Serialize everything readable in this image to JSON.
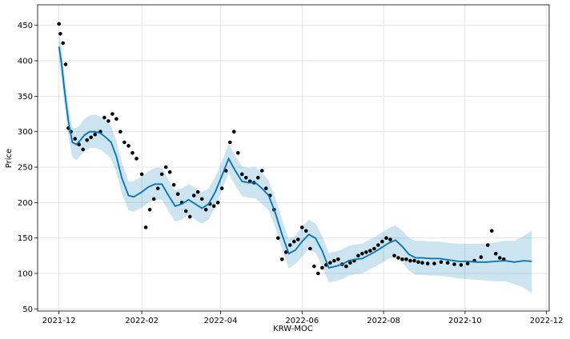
{
  "chart_data": {
    "type": "scatter",
    "xlabel": "KRW-MOC",
    "ylabel": "Price",
    "x_ticks": [
      "2021-12",
      "2022-02",
      "2022-04",
      "2022-06",
      "2022-08",
      "2022-10",
      "2022-12"
    ],
    "y_ticks": [
      50,
      100,
      150,
      200,
      250,
      300,
      350,
      400,
      450
    ],
    "xlim": [
      "2021-11-15",
      "2022-12-03"
    ],
    "ylim": [
      47,
      479
    ],
    "grid": true,
    "colors": {
      "observed": "#000000",
      "forecast": "#0072B2",
      "uncertainty": "#0072B2",
      "grid": "#dddddd"
    },
    "series": [
      {
        "role": "forecast",
        "x": [
          "2021-12-01",
          "2021-12-03",
          "2021-12-05",
          "2021-12-08",
          "2021-12-11",
          "2021-12-14",
          "2021-12-17",
          "2021-12-20",
          "2021-12-24",
          "2021-12-28",
          "2022-01-01",
          "2022-01-05",
          "2022-01-09",
          "2022-01-13",
          "2022-01-17",
          "2022-01-22",
          "2022-01-26",
          "2022-02-01",
          "2022-02-06",
          "2022-02-11",
          "2022-02-16",
          "2022-02-21",
          "2022-02-26",
          "2022-03-03",
          "2022-03-08",
          "2022-03-13",
          "2022-03-18",
          "2022-03-23",
          "2022-03-28",
          "2022-04-02",
          "2022-04-07",
          "2022-04-12",
          "2022-04-17",
          "2022-04-22",
          "2022-04-27",
          "2022-05-02",
          "2022-05-07",
          "2022-05-12",
          "2022-05-17",
          "2022-05-22",
          "2022-05-27",
          "2022-06-01",
          "2022-06-06",
          "2022-06-11",
          "2022-06-16",
          "2022-06-21",
          "2022-06-26",
          "2022-07-01",
          "2022-07-06",
          "2022-07-11",
          "2022-07-16",
          "2022-07-21",
          "2022-07-26",
          "2022-07-31",
          "2022-08-05",
          "2022-08-10",
          "2022-08-15",
          "2022-08-20",
          "2022-08-25",
          "2022-08-30",
          "2022-09-05",
          "2022-09-12",
          "2022-09-19",
          "2022-09-26",
          "2022-10-03",
          "2022-10-10",
          "2022-10-17",
          "2022-10-24",
          "2022-10-31",
          "2022-11-07",
          "2022-11-14",
          "2022-11-20"
        ],
        "y": [
          420,
          395,
          360,
          315,
          285,
          282,
          288,
          295,
          300,
          300,
          298,
          292,
          285,
          265,
          235,
          210,
          208,
          215,
          222,
          226,
          226,
          210,
          195,
          198,
          204,
          198,
          192,
          198,
          215,
          238,
          262,
          245,
          230,
          228,
          228,
          220,
          210,
          185,
          155,
          128,
          133,
          145,
          155,
          150,
          132,
          108,
          110,
          113,
          118,
          120,
          121,
          126,
          131,
          137,
          143,
          147,
          138,
          127,
          122,
          122,
          121,
          121,
          119,
          117,
          117,
          116,
          116,
          117,
          118,
          116,
          118,
          117
        ]
      },
      {
        "role": "uncertainty",
        "upper": [
          440,
          416,
          383,
          337,
          306,
          305,
          310,
          318,
          323,
          324,
          321,
          316,
          308,
          287,
          257,
          230,
          230,
          237,
          244,
          249,
          249,
          232,
          217,
          220,
          226,
          221,
          214,
          220,
          236,
          258,
          283,
          266,
          251,
          249,
          250,
          242,
          231,
          206,
          176,
          149,
          153,
          166,
          176,
          171,
          153,
          129,
          131,
          134,
          139,
          141,
          142,
          147,
          152,
          158,
          164,
          168,
          160,
          150,
          146,
          146,
          145,
          145,
          143,
          142,
          142,
          142,
          142,
          144,
          146,
          146,
          153,
          160
        ],
        "lower": [
          399,
          374,
          339,
          294,
          264,
          260,
          266,
          272,
          277,
          277,
          275,
          269,
          262,
          243,
          213,
          189,
          187,
          193,
          200,
          204,
          204,
          188,
          173,
          176,
          182,
          176,
          170,
          176,
          194,
          218,
          241,
          224,
          209,
          207,
          206,
          198,
          189,
          164,
          134,
          107,
          113,
          124,
          134,
          129,
          111,
          87,
          89,
          92,
          97,
          99,
          100,
          105,
          110,
          115,
          121,
          125,
          116,
          104,
          98,
          98,
          97,
          97,
          95,
          93,
          92,
          91,
          90,
          89,
          89,
          85,
          80,
          72
        ]
      },
      {
        "role": "observed",
        "x": [
          "2021-12-01",
          "2021-12-02",
          "2021-12-04",
          "2021-12-06",
          "2021-12-08",
          "2021-12-10",
          "2021-12-13",
          "2021-12-16",
          "2021-12-19",
          "2021-12-22",
          "2021-12-25",
          "2021-12-28",
          "2022-01-01",
          "2022-01-04",
          "2022-01-07",
          "2022-01-10",
          "2022-01-13",
          "2022-01-16",
          "2022-01-19",
          "2022-01-22",
          "2022-01-25",
          "2022-01-28",
          "2022-02-01",
          "2022-02-04",
          "2022-02-07",
          "2022-02-10",
          "2022-02-13",
          "2022-02-16",
          "2022-02-19",
          "2022-02-22",
          "2022-02-25",
          "2022-02-28",
          "2022-03-03",
          "2022-03-06",
          "2022-03-09",
          "2022-03-12",
          "2022-03-15",
          "2022-03-18",
          "2022-03-21",
          "2022-03-24",
          "2022-03-27",
          "2022-03-30",
          "2022-04-02",
          "2022-04-05",
          "2022-04-08",
          "2022-04-11",
          "2022-04-14",
          "2022-04-17",
          "2022-04-20",
          "2022-04-23",
          "2022-04-26",
          "2022-04-29",
          "2022-05-02",
          "2022-05-05",
          "2022-05-08",
          "2022-05-11",
          "2022-05-14",
          "2022-05-17",
          "2022-05-20",
          "2022-05-23",
          "2022-05-26",
          "2022-05-29",
          "2022-06-01",
          "2022-06-04",
          "2022-06-07",
          "2022-06-10",
          "2022-06-13",
          "2022-06-16",
          "2022-06-19",
          "2022-06-22",
          "2022-06-25",
          "2022-06-28",
          "2022-07-01",
          "2022-07-04",
          "2022-07-07",
          "2022-07-10",
          "2022-07-13",
          "2022-07-16",
          "2022-07-19",
          "2022-07-22",
          "2022-07-25",
          "2022-07-28",
          "2022-07-31",
          "2022-08-03",
          "2022-08-06",
          "2022-08-09",
          "2022-08-12",
          "2022-08-15",
          "2022-08-18",
          "2022-08-21",
          "2022-08-24",
          "2022-08-27",
          "2022-08-30",
          "2022-09-03",
          "2022-09-08",
          "2022-09-13",
          "2022-09-18",
          "2022-09-23",
          "2022-09-28",
          "2022-10-03",
          "2022-10-08",
          "2022-10-13",
          "2022-10-18",
          "2022-10-21",
          "2022-10-24",
          "2022-10-27",
          "2022-10-30"
        ],
        "y": [
          452,
          438,
          425,
          395,
          305,
          300,
          290,
          282,
          275,
          288,
          292,
          296,
          300,
          320,
          315,
          325,
          318,
          300,
          285,
          280,
          270,
          262,
          240,
          165,
          190,
          205,
          220,
          240,
          250,
          243,
          225,
          212,
          200,
          188,
          180,
          210,
          215,
          205,
          190,
          198,
          195,
          200,
          220,
          245,
          285,
          300,
          270,
          240,
          235,
          230,
          228,
          235,
          245,
          220,
          210,
          190,
          150,
          120,
          130,
          140,
          145,
          148,
          165,
          160,
          135,
          110,
          100,
          108,
          112,
          115,
          118,
          120,
          113,
          110,
          115,
          118,
          125,
          128,
          130,
          132,
          135,
          140,
          145,
          150,
          148,
          125,
          122,
          120,
          120,
          118,
          118,
          116,
          115,
          114,
          114,
          116,
          115,
          113,
          112,
          114,
          118,
          123,
          140,
          160,
          128,
          122,
          120
        ]
      }
    ]
  }
}
